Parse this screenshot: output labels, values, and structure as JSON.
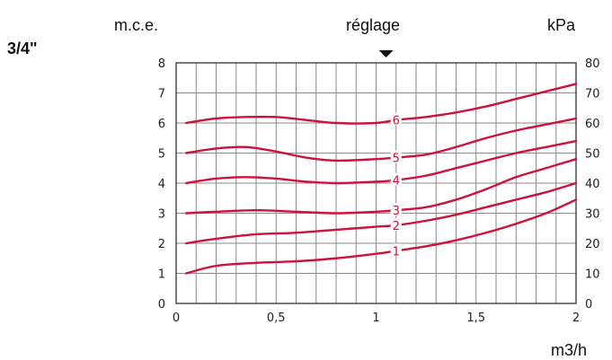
{
  "header": {
    "size_label": "3/4\"",
    "left_unit": "m.c.e.",
    "center_label": "réglage",
    "right_unit": "kPa",
    "x_unit": "m3/h"
  },
  "chart_data": {
    "type": "line",
    "x_range": [
      0,
      2
    ],
    "y_left_range": [
      0,
      8
    ],
    "y_right_range": [
      0,
      80
    ],
    "x_ticks": [
      {
        "value": 0,
        "label": "0"
      },
      {
        "value": 0.5,
        "label": "0,5"
      },
      {
        "value": 1,
        "label": "1"
      },
      {
        "value": 1.5,
        "label": "1,5"
      },
      {
        "value": 2,
        "label": "2"
      }
    ],
    "y_left_ticks": [
      "0",
      "1",
      "2",
      "3",
      "4",
      "5",
      "6",
      "7",
      "8"
    ],
    "y_right_ticks": [
      "0",
      "10",
      "20",
      "30",
      "40",
      "50",
      "60",
      "70",
      "80"
    ],
    "grid": true,
    "setting_marker_x": 1.05,
    "line_color": "#d0103a",
    "series": [
      {
        "name": "1",
        "label_x": 1.1,
        "x": [
          0.05,
          0.2,
          0.4,
          0.6,
          0.8,
          1.0,
          1.1,
          1.25,
          1.4,
          1.55,
          1.7,
          1.85,
          2.0
        ],
        "y": [
          1.0,
          1.25,
          1.35,
          1.4,
          1.5,
          1.65,
          1.75,
          1.9,
          2.1,
          2.35,
          2.65,
          3.0,
          3.45
        ]
      },
      {
        "name": "2",
        "label_x": 1.1,
        "x": [
          0.05,
          0.2,
          0.4,
          0.6,
          0.8,
          1.0,
          1.1,
          1.25,
          1.4,
          1.55,
          1.7,
          1.85,
          2.0
        ],
        "y": [
          2.0,
          2.15,
          2.3,
          2.35,
          2.45,
          2.55,
          2.6,
          2.75,
          2.95,
          3.2,
          3.45,
          3.7,
          4.0
        ]
      },
      {
        "name": "3",
        "label_x": 1.1,
        "x": [
          0.05,
          0.2,
          0.4,
          0.6,
          0.8,
          1.0,
          1.1,
          1.25,
          1.4,
          1.55,
          1.7,
          1.85,
          2.0
        ],
        "y": [
          3.0,
          3.05,
          3.1,
          3.05,
          3.0,
          3.05,
          3.1,
          3.2,
          3.45,
          3.8,
          4.2,
          4.5,
          4.8
        ]
      },
      {
        "name": "4",
        "label_x": 1.1,
        "x": [
          0.05,
          0.2,
          0.35,
          0.5,
          0.65,
          0.8,
          1.0,
          1.1,
          1.25,
          1.4,
          1.55,
          1.7,
          1.85,
          2.0
        ],
        "y": [
          4.0,
          4.15,
          4.2,
          4.15,
          4.05,
          4.0,
          4.05,
          4.1,
          4.25,
          4.5,
          4.75,
          5.0,
          5.2,
          5.4
        ]
      },
      {
        "name": "5",
        "label_x": 1.1,
        "x": [
          0.05,
          0.2,
          0.35,
          0.5,
          0.65,
          0.8,
          1.0,
          1.1,
          1.25,
          1.4,
          1.55,
          1.7,
          1.85,
          2.0
        ],
        "y": [
          5.0,
          5.15,
          5.2,
          5.05,
          4.85,
          4.75,
          4.8,
          4.85,
          4.95,
          5.2,
          5.5,
          5.75,
          5.95,
          6.15
        ]
      },
      {
        "name": "6",
        "label_x": 1.1,
        "x": [
          0.05,
          0.2,
          0.35,
          0.5,
          0.65,
          0.8,
          1.0,
          1.1,
          1.25,
          1.4,
          1.55,
          1.7,
          1.85,
          2.0
        ],
        "y": [
          6.0,
          6.15,
          6.2,
          6.2,
          6.1,
          6.0,
          6.0,
          6.1,
          6.2,
          6.35,
          6.55,
          6.8,
          7.05,
          7.3
        ]
      }
    ]
  }
}
